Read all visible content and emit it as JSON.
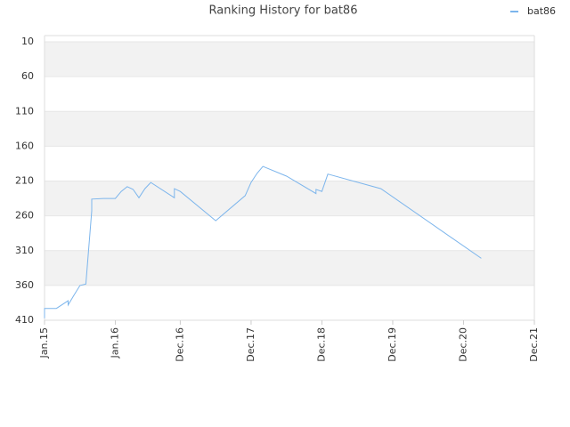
{
  "chart_data": {
    "type": "line",
    "title": "Ranking History for bat86",
    "x": [
      "2015-01",
      "2015-01",
      "2015-03",
      "2015-05",
      "2015-05",
      "2015-06",
      "2015-07",
      "2015-08",
      "2015-09",
      "2015-09",
      "2015-11",
      "2016-01",
      "2016-02",
      "2016-03",
      "2016-04",
      "2016-05",
      "2016-06",
      "2016-07",
      "2016-11",
      "2016-11",
      "2016-12",
      "2017-06",
      "2017-11",
      "2017-12",
      "2018-01",
      "2018-02",
      "2018-06",
      "2018-11",
      "2018-11",
      "2018-12",
      "2019-01",
      "2019-10",
      "2021-03"
    ],
    "series": [
      {
        "name": "bat86",
        "color": "#7cb5ec",
        "values": [
          407,
          393,
          393,
          382,
          388,
          374,
          360,
          358,
          253,
          236,
          235,
          235,
          225,
          218,
          222,
          234,
          221,
          212,
          234,
          221,
          225,
          267,
          231,
          212,
          199,
          189,
          203,
          228,
          222,
          225,
          200,
          221,
          321
        ]
      }
    ],
    "xlim": [
      "2015-01",
      "2021-12"
    ],
    "xticks": [
      {
        "value": "2015-01",
        "label": "Jan.15"
      },
      {
        "value": "2016-01",
        "label": "Jan.16"
      },
      {
        "value": "2016-12",
        "label": "Dec.16"
      },
      {
        "value": "2017-12",
        "label": "Dec.17"
      },
      {
        "value": "2018-12",
        "label": "Dec.18"
      },
      {
        "value": "2019-12",
        "label": "Dec.19"
      },
      {
        "value": "2020-12",
        "label": "Dec.20"
      },
      {
        "value": "2021-12",
        "label": "Dec.21"
      }
    ],
    "ylim": [
      10,
      410
    ],
    "y_inverted": true,
    "yticks": [
      10,
      60,
      110,
      160,
      210,
      260,
      310,
      360,
      410
    ],
    "grid": true,
    "legend": "top-right"
  }
}
